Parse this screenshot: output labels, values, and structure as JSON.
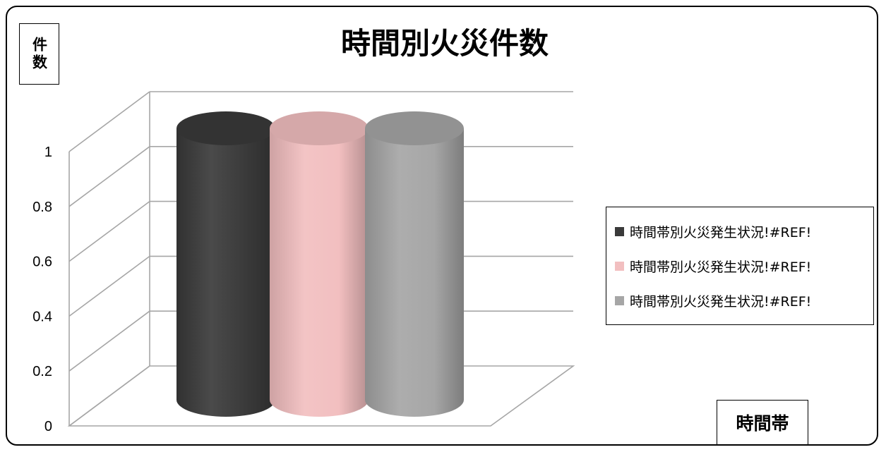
{
  "chart_data": {
    "type": "bar",
    "title": "時間別火災件数",
    "xlabel": "時間帯",
    "ylabel": "件数",
    "ylim": [
      0,
      1
    ],
    "yticks": [
      "0",
      "0.2",
      "0.4",
      "0.6",
      "0.8",
      "1"
    ],
    "grid": true,
    "legend_position": "right",
    "series": [
      {
        "name": "時間帯別火災発生状況!#REF!",
        "values": [
          1
        ],
        "color": "#3a3a3a"
      },
      {
        "name": "時間帯別火災発生状況!#REF!",
        "values": [
          1
        ],
        "color": "#f2bfc0"
      },
      {
        "name": "時間帯別火災発生状況!#REF!",
        "values": [
          1
        ],
        "color": "#a6a6a6"
      }
    ]
  }
}
